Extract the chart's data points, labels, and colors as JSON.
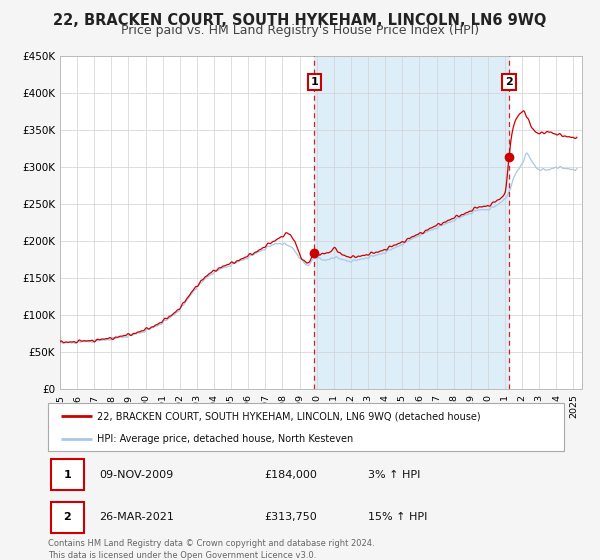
{
  "title": "22, BRACKEN COURT, SOUTH HYKEHAM, LINCOLN, LN6 9WQ",
  "subtitle": "Price paid vs. HM Land Registry's House Price Index (HPI)",
  "ylim": [
    0,
    450000
  ],
  "xlim": [
    1995,
    2025.5
  ],
  "yticks": [
    0,
    50000,
    100000,
    150000,
    200000,
    250000,
    300000,
    350000,
    400000,
    450000
  ],
  "ytick_labels": [
    "£0",
    "£50K",
    "£100K",
    "£150K",
    "£200K",
    "£250K",
    "£300K",
    "£350K",
    "£400K",
    "£450K"
  ],
  "hpi_color": "#a8c8e8",
  "price_color": "#cc0000",
  "marker_color": "#cc0000",
  "background_color": "#f5f5f5",
  "plot_bg_color": "#ffffff",
  "grid_color": "#d0d0d0",
  "shade_color": "#ddeef8",
  "vline1_x": 2009.86,
  "vline2_x": 2021.23,
  "sale1_x": 2009.86,
  "sale1_y": 184000,
  "sale2_x": 2021.23,
  "sale2_y": 313750,
  "legend_price_label": "22, BRACKEN COURT, SOUTH HYKEHAM, LINCOLN, LN6 9WQ (detached house)",
  "legend_hpi_label": "HPI: Average price, detached house, North Kesteven",
  "annotation1_num": "1",
  "annotation1_date": "09-NOV-2009",
  "annotation1_price": "£184,000",
  "annotation1_hpi": "3% ↑ HPI",
  "annotation2_num": "2",
  "annotation2_date": "26-MAR-2021",
  "annotation2_price": "£313,750",
  "annotation2_hpi": "15% ↑ HPI",
  "footer_line1": "Contains HM Land Registry data © Crown copyright and database right 2024.",
  "footer_line2": "This data is licensed under the Open Government Licence v3.0.",
  "title_fontsize": 10.5,
  "subtitle_fontsize": 9,
  "hpi_keys": [
    [
      1995.0,
      62000
    ],
    [
      1996.0,
      63500
    ],
    [
      1997.0,
      65000
    ],
    [
      1998.0,
      68000
    ],
    [
      1999.0,
      72000
    ],
    [
      2000.0,
      79000
    ],
    [
      2001.0,
      90000
    ],
    [
      2002.0,
      108000
    ],
    [
      2003.0,
      138000
    ],
    [
      2004.0,
      158000
    ],
    [
      2005.0,
      168000
    ],
    [
      2006.0,
      178000
    ],
    [
      2007.0,
      190000
    ],
    [
      2007.8,
      197000
    ],
    [
      2008.5,
      192000
    ],
    [
      2009.0,
      178000
    ],
    [
      2009.5,
      167000
    ],
    [
      2009.86,
      178000
    ],
    [
      2010.5,
      174000
    ],
    [
      2011.0,
      178000
    ],
    [
      2011.5,
      175000
    ],
    [
      2012.0,
      173000
    ],
    [
      2012.5,
      175000
    ],
    [
      2013.0,
      178000
    ],
    [
      2013.5,
      181000
    ],
    [
      2014.0,
      185000
    ],
    [
      2015.0,
      196000
    ],
    [
      2016.0,
      208000
    ],
    [
      2017.0,
      218000
    ],
    [
      2018.0,
      228000
    ],
    [
      2019.0,
      238000
    ],
    [
      2019.5,
      242000
    ],
    [
      2020.0,
      243000
    ],
    [
      2020.5,
      248000
    ],
    [
      2021.0,
      258000
    ],
    [
      2021.23,
      265000
    ],
    [
      2021.5,
      285000
    ],
    [
      2022.0,
      305000
    ],
    [
      2022.3,
      318000
    ],
    [
      2022.5,
      310000
    ],
    [
      2023.0,
      297000
    ],
    [
      2023.5,
      296000
    ],
    [
      2024.0,
      300000
    ],
    [
      2024.5,
      298000
    ],
    [
      2025.0,
      297000
    ]
  ],
  "price_keys": [
    [
      1995.0,
      63000
    ],
    [
      1996.0,
      64500
    ],
    [
      1997.0,
      66000
    ],
    [
      1998.0,
      69000
    ],
    [
      1999.0,
      73500
    ],
    [
      2000.0,
      80500
    ],
    [
      2001.0,
      92000
    ],
    [
      2002.0,
      110000
    ],
    [
      2003.0,
      140000
    ],
    [
      2004.0,
      160000
    ],
    [
      2005.0,
      170000
    ],
    [
      2006.0,
      180000
    ],
    [
      2007.0,
      193000
    ],
    [
      2007.5,
      200000
    ],
    [
      2008.0,
      207000
    ],
    [
      2008.3,
      210000
    ],
    [
      2008.7,
      200000
    ],
    [
      2009.0,
      183000
    ],
    [
      2009.3,
      172000
    ],
    [
      2009.5,
      170000
    ],
    [
      2009.86,
      184000
    ],
    [
      2010.3,
      183000
    ],
    [
      2010.8,
      185000
    ],
    [
      2011.0,
      190000
    ],
    [
      2011.5,
      182000
    ],
    [
      2012.0,
      178000
    ],
    [
      2012.5,
      180000
    ],
    [
      2013.0,
      182000
    ],
    [
      2013.5,
      185000
    ],
    [
      2014.0,
      189000
    ],
    [
      2015.0,
      199000
    ],
    [
      2016.0,
      210000
    ],
    [
      2017.0,
      221000
    ],
    [
      2018.0,
      231000
    ],
    [
      2019.0,
      241000
    ],
    [
      2019.5,
      246000
    ],
    [
      2020.0,
      248000
    ],
    [
      2020.5,
      254000
    ],
    [
      2021.0,
      265000
    ],
    [
      2021.23,
      313750
    ],
    [
      2021.5,
      355000
    ],
    [
      2021.8,
      370000
    ],
    [
      2022.1,
      375000
    ],
    [
      2022.3,
      368000
    ],
    [
      2022.6,
      352000
    ],
    [
      2023.0,
      345000
    ],
    [
      2023.5,
      348000
    ],
    [
      2024.0,
      344000
    ],
    [
      2024.5,
      342000
    ],
    [
      2025.0,
      340000
    ]
  ]
}
